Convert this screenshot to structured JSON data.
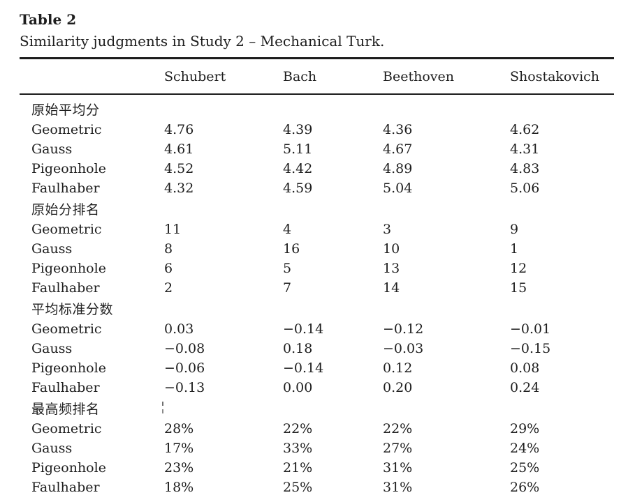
{
  "table": {
    "title": "Table 2",
    "caption": "Similarity judgments in Study 2 – Mechanical Turk.",
    "columns": [
      "Schubert",
      "Bach",
      "Beethoven",
      "Shostakovich"
    ],
    "sections": [
      {
        "header": "原始平均分",
        "rows": [
          {
            "label": "Geometric",
            "values": [
              "4.76",
              "4.39",
              "4.36",
              "4.62"
            ]
          },
          {
            "label": "Gauss",
            "values": [
              "4.61",
              "5.11",
              "4.67",
              "4.31"
            ]
          },
          {
            "label": "Pigeonhole",
            "values": [
              "4.52",
              "4.42",
              "4.89",
              "4.83"
            ]
          },
          {
            "label": "Faulhaber",
            "values": [
              "4.32",
              "4.59",
              "5.04",
              "5.06"
            ]
          }
        ]
      },
      {
        "header": "原始分排名",
        "rows": [
          {
            "label": "Geometric",
            "values": [
              "11",
              "4",
              "3",
              "9"
            ]
          },
          {
            "label": "Gauss",
            "values": [
              "8",
              "16",
              "10",
              "1"
            ]
          },
          {
            "label": "Pigeonhole",
            "values": [
              "6",
              "5",
              "13",
              "12"
            ]
          },
          {
            "label": "Faulhaber",
            "values": [
              "2",
              "7",
              "14",
              "15"
            ]
          }
        ]
      },
      {
        "header": "平均标准分数",
        "rows": [
          {
            "label": "Geometric",
            "values": [
              "0.03",
              "−0.14",
              "−0.12",
              "−0.01"
            ]
          },
          {
            "label": "Gauss",
            "values": [
              "−0.08",
              "0.18",
              "−0.03",
              "−0.15"
            ]
          },
          {
            "label": "Pigeonhole",
            "values": [
              "−0.06",
              "−0.14",
              "0.12",
              "0.08"
            ]
          },
          {
            "label": "Faulhaber",
            "values": [
              "−0.13",
              "0.00",
              "0.20",
              "0.24"
            ]
          }
        ]
      },
      {
        "header": "最高频排名",
        "rows": [
          {
            "label": "Geometric",
            "values": [
              "28%",
              "22%",
              "22%",
              "29%"
            ]
          },
          {
            "label": "Gauss",
            "values": [
              "17%",
              "33%",
              "27%",
              "24%"
            ]
          },
          {
            "label": "Pigeonhole",
            "values": [
              "23%",
              "21%",
              "31%",
              "25%"
            ]
          },
          {
            "label": "Faulhaber",
            "values": [
              "18%",
              "25%",
              "31%",
              "26%"
            ]
          }
        ]
      }
    ]
  }
}
